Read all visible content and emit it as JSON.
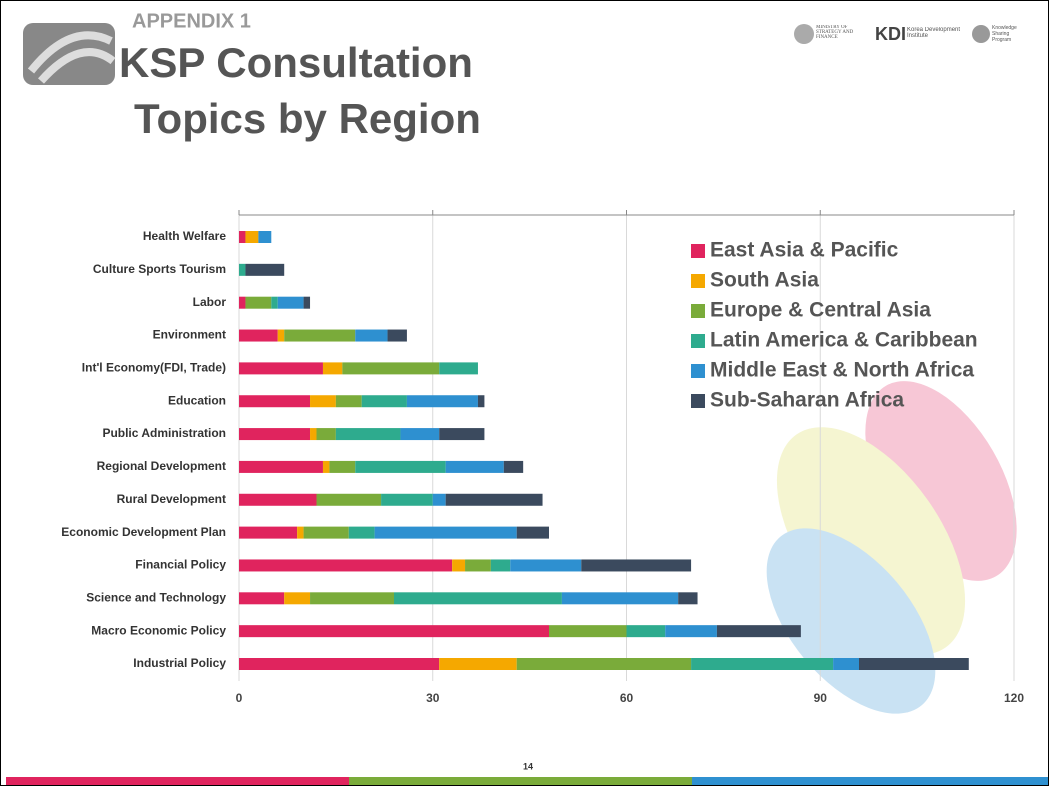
{
  "header": {
    "appendix": "APPENDIX 1",
    "title": [
      "KSP Consultation",
      "Topics by Region"
    ],
    "logos": [
      "MINISTRY OF STRATEGY AND FINANCE",
      "KDI",
      "Korea Development Institute",
      "Knowledge Sharing Program"
    ]
  },
  "page_number": "14",
  "chart_data": {
    "type": "stacked-barh",
    "categories": [
      "Health Welfare",
      "Culture Sports Tourism",
      "Labor",
      "Environment",
      "Int'l Economy(FDI, Trade)",
      "Education",
      "Public Administration",
      "Regional Development",
      "Rural Development",
      "Economic Development Plan",
      "Financial Policy",
      "Science and Technology",
      "Macro Economic Policy",
      "Industrial Policy"
    ],
    "series": [
      {
        "name": "East Asia & Pacific",
        "color": "#e0245e",
        "values": [
          1,
          0,
          1,
          6,
          13,
          11,
          11,
          13,
          12,
          9,
          33,
          7,
          48,
          31
        ]
      },
      {
        "name": "South Asia",
        "color": "#f5a800",
        "values": [
          2,
          0,
          0,
          1,
          3,
          4,
          1,
          1,
          0,
          1,
          2,
          4,
          0,
          12
        ]
      },
      {
        "name": "Europe & Central Asia",
        "color": "#7aab3a",
        "values": [
          0,
          0,
          4,
          11,
          15,
          4,
          3,
          4,
          10,
          7,
          4,
          13,
          12,
          27
        ]
      },
      {
        "name": "Latin America & Caribbean",
        "color": "#2eab8e",
        "values": [
          0,
          1,
          1,
          0,
          6,
          7,
          10,
          14,
          8,
          4,
          3,
          26,
          6,
          22
        ]
      },
      {
        "name": "Middle East & North Africa",
        "color": "#2e90d0",
        "values": [
          2,
          0,
          4,
          5,
          0,
          11,
          6,
          9,
          2,
          22,
          11,
          18,
          8,
          4
        ]
      },
      {
        "name": "Sub-Saharan Africa",
        "color": "#3b4a5e",
        "values": [
          0,
          6,
          1,
          3,
          0,
          1,
          7,
          3,
          15,
          5,
          17,
          3,
          13,
          17
        ]
      }
    ],
    "xlim": [
      0,
      120
    ],
    "xticks": [
      0,
      30,
      60,
      90,
      120
    ],
    "grid": true,
    "legend": "upper right"
  }
}
